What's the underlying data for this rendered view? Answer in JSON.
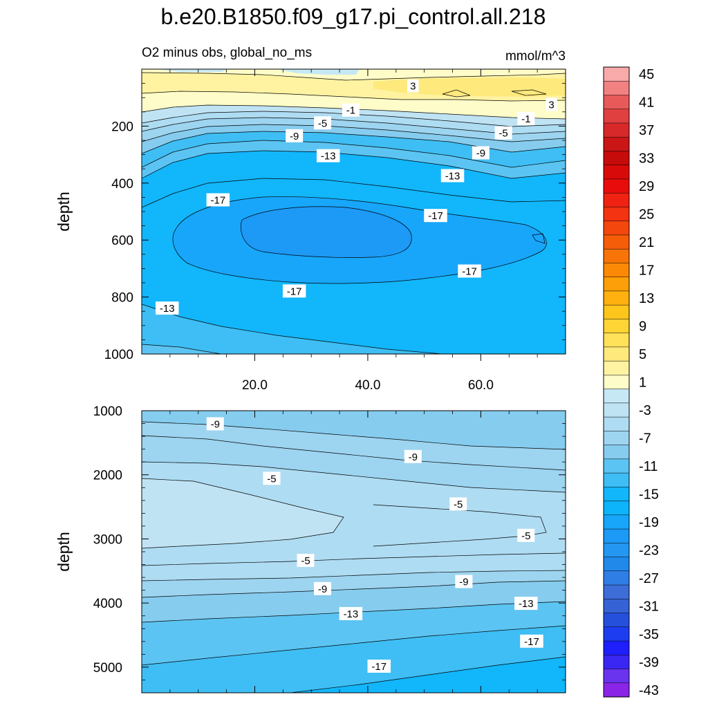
{
  "chart_data": {
    "type": "contour",
    "title": "b.e20.B1850.f09_g17.pi_control.all.218",
    "subtitle_left": "O2 minus obs, global_no_ms",
    "units": "mmol/m^3",
    "colors": {
      "neg43": "#8a24e6",
      "neg41": "#6a33ee",
      "neg39": "#3a26f2",
      "neg37": "#1f1ffb",
      "neg35": "#1d3ef0",
      "neg33": "#2550dc",
      "neg31": "#3563d6",
      "neg29": "#3d6ed8",
      "neg27": "#2f7ee6",
      "neg25": "#2189ea",
      "neg23": "#2497f2",
      "neg21": "#1d99f6",
      "neg19": "#18a6fb",
      "neg17": "#0db4fc",
      "neg15": "#12b6fb",
      "neg13": "#3ebef4",
      "neg11": "#5cc4f2",
      "neg9": "#86ccee",
      "neg7": "#9dd4f0",
      "neg5": "#aedcf2",
      "neg3": "#c0e3f4",
      "neg1": "#c6e8f5",
      "pos1": "#fefcc8",
      "pos3": "#fff3a2",
      "pos5": "#fee97c",
      "pos7": "#ffe15a",
      "pos9": "#fed535",
      "pos11": "#fec61c",
      "pos13": "#feb10f",
      "pos15": "#fd9f08",
      "pos17": "#fb8906",
      "pos19": "#f87408",
      "pos21": "#f55d08",
      "pos23": "#f3470d",
      "pos25": "#f33311",
      "pos27": "#f02212",
      "pos29": "#e80c0d",
      "pos31": "#d90a0a",
      "pos33": "#c70a0a",
      "pos35": "#ca1616",
      "pos37": "#d72929",
      "pos39": "#e04040",
      "pos41": "#e85a5a",
      "pos43": "#f28282",
      "pos45": "#f8aaaa"
    },
    "colorbar": {
      "labels": [
        "45",
        "41",
        "37",
        "33",
        "29",
        "25",
        "21",
        "17",
        "13",
        "9",
        "5",
        "1",
        "-3",
        "-7",
        "-11",
        "-15",
        "-19",
        "-23",
        "-27",
        "-31",
        "-35",
        "-39",
        "-43"
      ]
    },
    "top_panel": {
      "ylabel": "depth",
      "ylim": [
        1000,
        0
      ],
      "xlim": [
        0,
        75
      ],
      "yticks": [
        "200",
        "400",
        "600",
        "800",
        "1000"
      ],
      "xticks": [
        "20.0",
        "40.0",
        "60.0"
      ],
      "contour_labels": [
        {
          "text": "3",
          "x": 48,
          "y": 60
        },
        {
          "text": "3",
          "x": 72.5,
          "y": 125
        },
        {
          "text": "-1",
          "x": 37,
          "y": 145
        },
        {
          "text": "-1",
          "x": 68,
          "y": 175
        },
        {
          "text": "-5",
          "x": 32,
          "y": 190
        },
        {
          "text": "-5",
          "x": 64,
          "y": 225
        },
        {
          "text": "-9",
          "x": 27,
          "y": 235
        },
        {
          "text": "-9",
          "x": 60,
          "y": 295
        },
        {
          "text": "-13",
          "x": 33,
          "y": 305
        },
        {
          "text": "-13",
          "x": 55,
          "y": 375
        },
        {
          "text": "-17",
          "x": 13.5,
          "y": 460
        },
        {
          "text": "-17",
          "x": 52,
          "y": 515
        },
        {
          "text": "-17",
          "x": 58,
          "y": 710
        },
        {
          "text": "-17",
          "x": 27,
          "y": 780
        },
        {
          "text": "-13",
          "x": 4.5,
          "y": 840
        }
      ]
    },
    "bottom_panel": {
      "ylabel": "depth",
      "ylim": [
        5400,
        1000
      ],
      "yticks": [
        "1000",
        "2000",
        "3000",
        "4000",
        "5000"
      ],
      "contour_labels": [
        {
          "text": "-9",
          "x": 13,
          "y": 1210
        },
        {
          "text": "-9",
          "x": 48,
          "y": 1720
        },
        {
          "text": "-5",
          "x": 23,
          "y": 2060
        },
        {
          "text": "-5",
          "x": 56,
          "y": 2460
        },
        {
          "text": "-5",
          "x": 68,
          "y": 2950
        },
        {
          "text": "-5",
          "x": 29,
          "y": 3340
        },
        {
          "text": "-9",
          "x": 32,
          "y": 3780
        },
        {
          "text": "-9",
          "x": 57,
          "y": 3670
        },
        {
          "text": "-13",
          "x": 37,
          "y": 4170
        },
        {
          "text": "-13",
          "x": 68,
          "y": 4010
        },
        {
          "text": "-17",
          "x": 69,
          "y": 4600
        },
        {
          "text": "-17",
          "x": 42,
          "y": 4990
        }
      ]
    }
  }
}
